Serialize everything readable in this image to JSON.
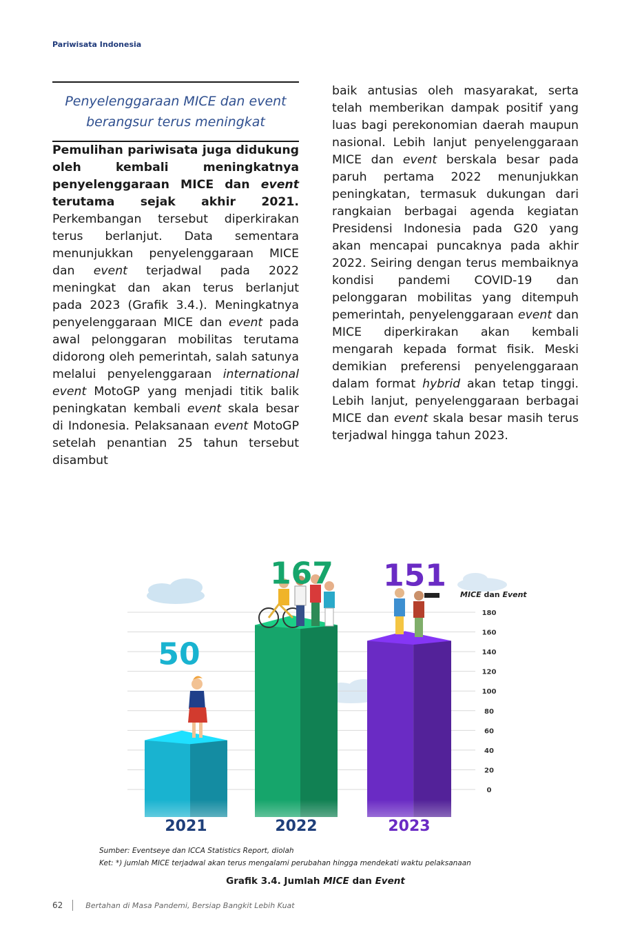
{
  "header": {
    "section": "Pariwisata Indonesia"
  },
  "pullquote": {
    "line1": "Penyelenggaraan MICE dan event",
    "line2": "berangsur terus meningkat"
  },
  "left_column": {
    "lead_bold_1": "Pemulihan pariwisata juga didukung oleh kembali meningkatnya penyelenggaraan MICE dan ",
    "lead_bold_italic": "event",
    "lead_bold_2": " terutama sejak akhir 2021.",
    "t1": " Perkembangan tersebut diperkirakan terus berlanjut. Data sementara menunjukkan penyelenggaraan MICE dan ",
    "i1": "event",
    "t2": " terjadwal pada 2022 meningkat dan akan terus berlanjut pada 2023 (Grafik 3.4.). Meningkatnya penyelenggaraan MICE dan ",
    "i2": "event",
    "t3": " pada awal pelonggaran mobilitas terutama didorong oleh pemerintah, salah satunya melalui penyelenggaraan ",
    "i3": "international event",
    "t4": " MotoGP yang menjadi titik balik peningkatan kembali ",
    "i4": "event",
    "t5": " skala besar di Indonesia. Pelaksanaan ",
    "i5": "event",
    "t6": " MotoGP setelah penantian 25 tahun tersebut disambut"
  },
  "right_column": {
    "t1": "baik antusias oleh masyarakat, serta telah memberikan dampak positif yang luas bagi perekonomian daerah maupun nasional. Lebih lanjut penyelenggaraan MICE dan ",
    "i1": "event",
    "t2": " berskala besar pada paruh pertama 2022 menunjukkan peningkatan, termasuk dukungan dari rangkaian berbagai agenda kegiatan Presidensi Indonesia pada G20 yang akan mencapai puncaknya pada akhir 2022. Seiring dengan terus membaiknya kondisi pandemi COVID-19 dan pelonggaran mobilitas yang ditempuh pemerintah, penyelenggaraan ",
    "i2": "event",
    "t3": " dan MICE diperkirakan akan kembali mengarah kepada format fisik. Meski demikian preferensi penyelenggaraan dalam format ",
    "i3": "hybrid",
    "t4": " akan tetap tinggi. Lebih lanjut, penyelenggaraan berbagai MICE dan ",
    "i4": "event",
    "t5": " skala besar masih terus terjadwal hingga tahun 2023."
  },
  "chart_data": {
    "type": "bar",
    "categories": [
      "2021",
      "2022",
      "2023"
    ],
    "values": [
      50,
      167,
      151
    ],
    "data_labels": [
      "50",
      "167",
      "151"
    ],
    "colors": [
      "#19b3d0",
      "#16a56b",
      "#6a2bc4"
    ],
    "ylabel_bold_italic": "MICE",
    "ylabel_mid": " dan ",
    "ylabel_italic": "Event",
    "yticks": [
      0,
      20,
      40,
      60,
      80,
      100,
      120,
      140,
      160,
      180
    ],
    "ylim": [
      0,
      180
    ],
    "grid": true
  },
  "source": "Sumber: Eventseye dan ICCA Statistics Report, diolah",
  "note": "Ket: *) jumlah MICE terjadwal akan terus mengalami perubahan hingga mendekati waktu pelaksanaan",
  "caption": {
    "pre": "Grafik 3.4. Jumlah ",
    "i1": "MICE",
    "mid": " dan ",
    "i2": "Event"
  },
  "footer": {
    "page": "62",
    "tagline": "Bertahan di Masa Pandemi, Bersiap Bangkit Lebih Kuat"
  }
}
